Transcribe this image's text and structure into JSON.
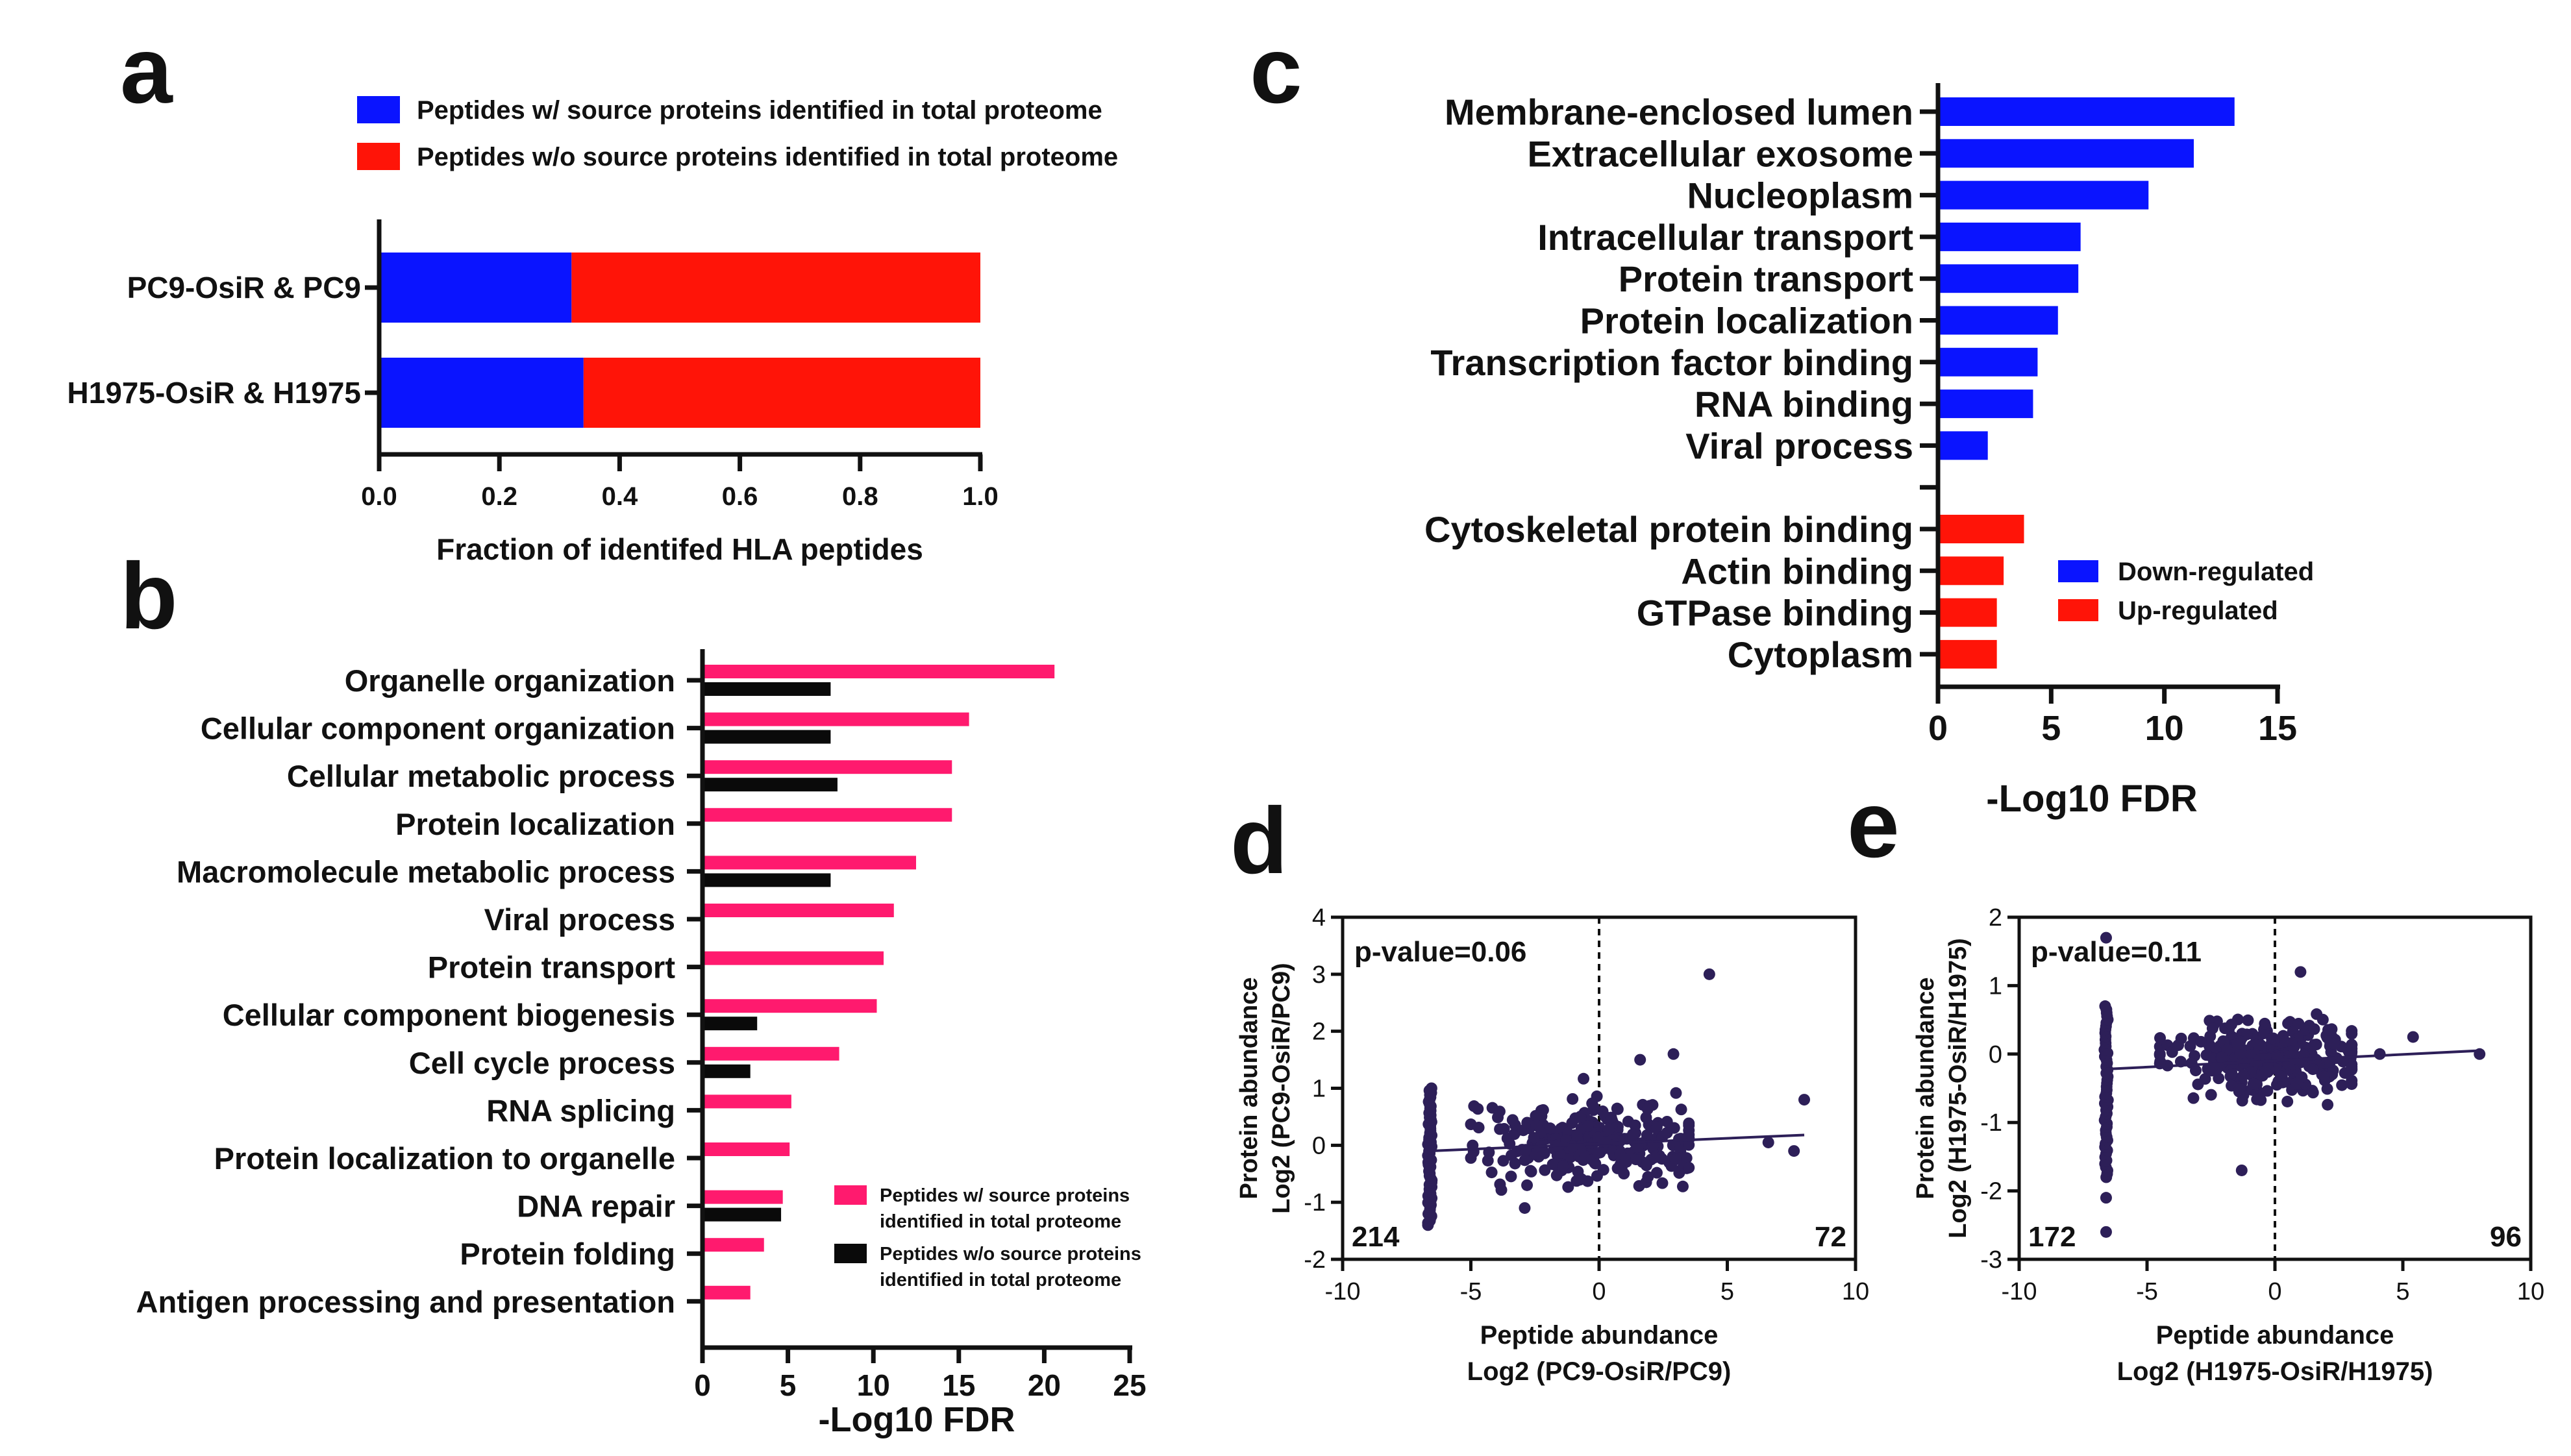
{
  "figure": {
    "panel_labels": [
      "a",
      "b",
      "c",
      "d",
      "e"
    ],
    "colors": {
      "blue": "#0a14ff",
      "red": "#ff1408",
      "pink": "#ff1a6e",
      "black": "#0a0a0a",
      "dot": "#2d1f58"
    }
  },
  "chart_data": [
    {
      "panel": "a",
      "type": "bar",
      "orientation": "horizontal",
      "stacked": true,
      "categories": [
        "PC9-OsiR & PC9",
        "H1975-OsiR & H1975"
      ],
      "series": [
        {
          "name": "Peptides w/ source proteins identified in total proteome",
          "color": "#0a14ff",
          "values": [
            0.32,
            0.34
          ]
        },
        {
          "name": "Peptides w/o  source proteins identified in total proteome",
          "color": "#ff1408",
          "values": [
            0.68,
            0.66
          ]
        }
      ],
      "xlabel": "Fraction of identifed HLA  peptides",
      "xlim": [
        0,
        1
      ],
      "xticks": [
        0,
        0.2,
        0.4,
        0.6,
        0.8,
        1.0
      ],
      "xtick_labels": [
        "0.0",
        "0.2",
        "0.4",
        "0.6",
        "0.8",
        "1.0"
      ],
      "legend": "top"
    },
    {
      "panel": "b",
      "type": "bar",
      "orientation": "horizontal",
      "categories": [
        "Organelle organization",
        "Cellular component organization",
        "Cellular metabolic process",
        "Protein localization",
        "Macromolecule metabolic process",
        "Viral process",
        "Protein transport",
        "Cellular component biogenesis",
        "Cell cycle process",
        "RNA splicing",
        "Protein localization to organelle",
        "DNA repair",
        "Protein folding",
        "Antigen processing and presentation"
      ],
      "series": [
        {
          "name": "Peptides w/ source proteins identified in total proteome",
          "legend_lines": [
            "Peptides w/ source proteins",
            "identified in total proteome"
          ],
          "color": "#ff1a6e",
          "values": [
            20.6,
            15.6,
            14.6,
            14.6,
            12.5,
            11.2,
            10.6,
            10.2,
            8.0,
            5.2,
            5.1,
            4.7,
            3.6,
            2.8
          ]
        },
        {
          "name": "Peptides w/o source proteins identified in total proteome",
          "legend_lines": [
            "Peptides w/o source proteins",
            "identified in total proteome"
          ],
          "color": "#0a0a0a",
          "values": [
            7.5,
            7.5,
            7.9,
            0,
            7.5,
            0,
            0,
            3.2,
            2.8,
            0,
            0,
            4.6,
            0,
            0
          ]
        }
      ],
      "xlabel": "-Log10 FDR",
      "xlim": [
        0,
        25
      ],
      "xticks": [
        0,
        5,
        10,
        15,
        20,
        25
      ],
      "legend": "bottom-right"
    },
    {
      "panel": "c",
      "type": "bar",
      "orientation": "horizontal",
      "categories": [
        "Membrane-enclosed lumen",
        "Extracellular exosome",
        "Nucleoplasm",
        "Intracellular transport",
        "Protein transport",
        "Protein localization",
        "Transcription factor binding",
        "RNA binding",
        "Viral process",
        "",
        "Cytoskeletal protein binding",
        "Actin binding",
        "GTPase binding",
        "Cytoplasm"
      ],
      "values": [
        13.1,
        11.3,
        9.3,
        6.3,
        6.2,
        5.3,
        4.4,
        4.2,
        2.2,
        null,
        3.8,
        2.9,
        2.6,
        2.6
      ],
      "groups": [
        "down",
        "down",
        "down",
        "down",
        "down",
        "down",
        "down",
        "down",
        "down",
        null,
        "up",
        "up",
        "up",
        "up"
      ],
      "series": [
        {
          "name": "Down-regulated",
          "color": "#0a14ff"
        },
        {
          "name": "Up-regulated",
          "color": "#ff1408"
        }
      ],
      "xlabel": "-Log10 FDR",
      "xlim": [
        0,
        15
      ],
      "xticks": [
        0,
        5,
        10,
        15
      ],
      "legend": "bottom-right"
    },
    {
      "panel": "d",
      "type": "scatter",
      "xlabel_lines": [
        "Peptide abundance",
        "Log2 (PC9-OsiR/PC9)"
      ],
      "ylabel_lines": [
        "Protein abundance",
        "Log2 (PC9-OsiR/PC9)"
      ],
      "xlim": [
        -10,
        10
      ],
      "ylim": [
        -2,
        4
      ],
      "xticks": [
        -10,
        -5,
        0,
        5,
        10
      ],
      "yticks": [
        -2,
        -1,
        0,
        1,
        2,
        3,
        4
      ],
      "annotation": "p-value=0.06",
      "count_left": "214",
      "count_right": "72",
      "fit_line": {
        "x": [
          -6.6,
          8.0
        ],
        "y": [
          -0.1,
          0.18
        ]
      },
      "vline_x": 0,
      "color": "#2d1f58",
      "column_x": -6.6,
      "column_range": [
        -1.4,
        1.0
      ],
      "cloud": {
        "x_range": [
          -5.0,
          3.5
        ],
        "y_range": [
          -1.2,
          1.3
        ],
        "center_x": -0.3
      },
      "outliers": [
        [
          4.3,
          3.0
        ],
        [
          8.0,
          0.8
        ],
        [
          7.6,
          -0.1
        ],
        [
          2.9,
          1.6
        ],
        [
          1.6,
          1.5
        ],
        [
          -2.9,
          -1.1
        ],
        [
          6.6,
          0.05
        ]
      ]
    },
    {
      "panel": "e",
      "type": "scatter",
      "xlabel_lines": [
        "Peptide abundance",
        "Log2 (H1975-OsiR/H1975)"
      ],
      "ylabel_lines": [
        "Protein abundance",
        "Log2 (H1975-OsiR/H1975)"
      ],
      "xlim": [
        -10,
        10
      ],
      "ylim": [
        -3,
        2
      ],
      "xticks": [
        -10,
        -5,
        0,
        5,
        10
      ],
      "yticks": [
        -3,
        -2,
        -1,
        0,
        1,
        2
      ],
      "annotation": "p-value=0.11",
      "count_left": "172",
      "count_right": "96",
      "fit_line": {
        "x": [
          -6.6,
          8.0
        ],
        "y": [
          -0.22,
          0.05
        ]
      },
      "vline_x": 0,
      "color": "#2d1f58",
      "column_x": -6.6,
      "column_range": [
        -1.8,
        0.7
      ],
      "cloud": {
        "x_range": [
          -4.5,
          3.0
        ],
        "y_range": [
          -1.0,
          0.9
        ],
        "center_x": -0.3
      },
      "outliers": [
        [
          -6.6,
          1.7
        ],
        [
          -6.6,
          -2.6
        ],
        [
          -6.6,
          -2.1
        ],
        [
          1.0,
          1.2
        ],
        [
          -1.3,
          -1.7
        ],
        [
          8.0,
          0.0
        ],
        [
          5.4,
          0.25
        ],
        [
          4.1,
          0.0
        ]
      ]
    }
  ]
}
